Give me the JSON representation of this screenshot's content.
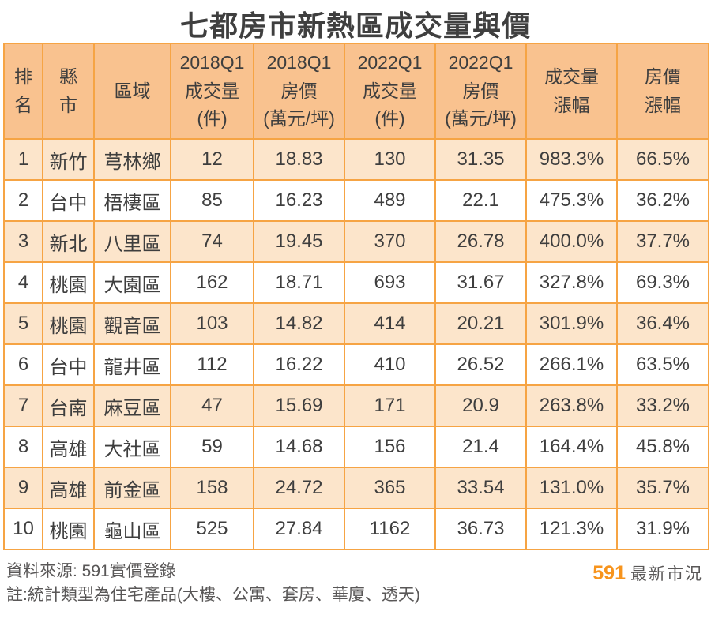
{
  "title": "七都房市新熱區成交量與價",
  "table": {
    "headers": [
      "排\n名",
      "縣\n市",
      "區域",
      "2018Q1\n成交量\n(件)",
      "2018Q1\n房價\n(萬元/坪)",
      "2022Q1\n成交量\n(件)",
      "2022Q1\n房價\n(萬元/坪)",
      "成交量\n漲幅",
      "房價\n漲幅"
    ],
    "rows": [
      [
        "1",
        "新竹",
        "芎林鄉",
        "12",
        "18.83",
        "130",
        "31.35",
        "983.3%",
        "66.5%"
      ],
      [
        "2",
        "台中",
        "梧棲區",
        "85",
        "16.23",
        "489",
        "22.1",
        "475.3%",
        "36.2%"
      ],
      [
        "3",
        "新北",
        "八里區",
        "74",
        "19.45",
        "370",
        "26.78",
        "400.0%",
        "37.7%"
      ],
      [
        "4",
        "桃園",
        "大園區",
        "162",
        "18.71",
        "693",
        "31.67",
        "327.8%",
        "69.3%"
      ],
      [
        "5",
        "桃園",
        "觀音區",
        "103",
        "14.82",
        "414",
        "20.21",
        "301.9%",
        "36.4%"
      ],
      [
        "6",
        "台中",
        "龍井區",
        "112",
        "16.22",
        "410",
        "26.52",
        "266.1%",
        "63.5%"
      ],
      [
        "7",
        "台南",
        "麻豆區",
        "47",
        "15.69",
        "171",
        "20.9",
        "263.8%",
        "33.2%"
      ],
      [
        "8",
        "高雄",
        "大社區",
        "59",
        "14.68",
        "156",
        "21.4",
        "164.4%",
        "45.8%"
      ],
      [
        "9",
        "高雄",
        "前金區",
        "158",
        "24.72",
        "365",
        "33.54",
        "131.0%",
        "35.7%"
      ],
      [
        "10",
        "桃園",
        "龜山區",
        "525",
        "27.84",
        "1162",
        "36.73",
        "121.3%",
        "31.9%"
      ]
    ]
  },
  "footer": {
    "source": "資料來源: 591實價登錄",
    "note": "註:統計類型為住宅產品(大樓、公寓、套房、華廈、透天)",
    "brand": "591",
    "brand_suffix": "最新市況"
  },
  "colors": {
    "border": "#f6a444",
    "header_bg": "#f9c28f",
    "stripe_bg": "#fce5cb",
    "text": "#3e3e3e",
    "footer_text": "#595757",
    "brand_orange": "#f7941d"
  },
  "chart_data": {
    "type": "table",
    "title": "七都房市新熱區成交量與價",
    "columns": [
      "排名",
      "縣市",
      "區域",
      "2018Q1成交量(件)",
      "2018Q1房價(萬元/坪)",
      "2022Q1成交量(件)",
      "2022Q1房價(萬元/坪)",
      "成交量漲幅",
      "房價漲幅"
    ],
    "rows": [
      [
        1,
        "新竹",
        "芎林鄉",
        12,
        18.83,
        130,
        31.35,
        "983.3%",
        "66.5%"
      ],
      [
        2,
        "台中",
        "梧棲區",
        85,
        16.23,
        489,
        22.1,
        "475.3%",
        "36.2%"
      ],
      [
        3,
        "新北",
        "八里區",
        74,
        19.45,
        370,
        26.78,
        "400.0%",
        "37.7%"
      ],
      [
        4,
        "桃園",
        "大園區",
        162,
        18.71,
        693,
        31.67,
        "327.8%",
        "69.3%"
      ],
      [
        5,
        "桃園",
        "觀音區",
        103,
        14.82,
        414,
        20.21,
        "301.9%",
        "36.4%"
      ],
      [
        6,
        "台中",
        "龍井區",
        112,
        16.22,
        410,
        26.52,
        "266.1%",
        "63.5%"
      ],
      [
        7,
        "台南",
        "麻豆區",
        47,
        15.69,
        171,
        20.9,
        "263.8%",
        "33.2%"
      ],
      [
        8,
        "高雄",
        "大社區",
        59,
        14.68,
        156,
        21.4,
        "164.4%",
        "45.8%"
      ],
      [
        9,
        "高雄",
        "前金區",
        158,
        24.72,
        365,
        33.54,
        "131.0%",
        "35.7%"
      ],
      [
        10,
        "桃園",
        "龜山區",
        525,
        27.84,
        1162,
        36.73,
        "121.3%",
        "31.9%"
      ]
    ],
    "source": "591實價登錄",
    "note": "統計類型為住宅產品(大樓、公寓、套房、華廈、透天)"
  }
}
